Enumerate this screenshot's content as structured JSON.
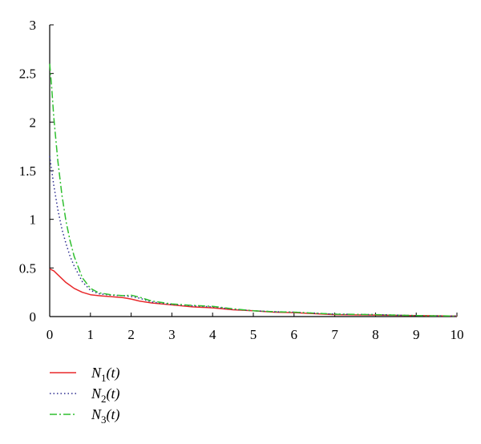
{
  "chart_data": {
    "type": "line",
    "title": "",
    "xlabel": "",
    "ylabel": "",
    "xlim": [
      0,
      10
    ],
    "ylim": [
      0,
      3
    ],
    "xticks": [
      "0",
      "1",
      "2",
      "3",
      "4",
      "5",
      "6",
      "7",
      "8",
      "9",
      "10"
    ],
    "yticks": [
      "0",
      "0.5",
      "1",
      "1.5",
      "2",
      "2.5",
      "3"
    ],
    "grid": false,
    "legend_position": "bottom-left",
    "series": [
      {
        "name": "N1(t)",
        "legend_base": "N",
        "legend_sub": "1",
        "legend_suffix": "(t)",
        "color": "#e8292b",
        "style": "solid",
        "x": [
          0,
          0.1,
          0.2,
          0.3,
          0.4,
          0.5,
          0.6,
          0.8,
          1.0,
          1.2,
          1.5,
          1.8,
          2.0,
          2.2,
          2.5,
          3.0,
          3.5,
          4.0,
          4.5,
          5.0,
          5.5,
          6.0,
          6.5,
          7.0,
          8.0,
          9.0,
          10.0
        ],
        "y": [
          0.49,
          0.47,
          0.43,
          0.39,
          0.35,
          0.32,
          0.29,
          0.25,
          0.225,
          0.215,
          0.205,
          0.195,
          0.18,
          0.16,
          0.14,
          0.12,
          0.1,
          0.09,
          0.07,
          0.06,
          0.045,
          0.04,
          0.03,
          0.02,
          0.015,
          0.01,
          0.005
        ]
      },
      {
        "name": "N2(t)",
        "legend_base": "N",
        "legend_sub": "2",
        "legend_suffix": "(t)",
        "color": "#2b2b8f",
        "style": "dotted",
        "x": [
          0,
          0.05,
          0.1,
          0.2,
          0.3,
          0.4,
          0.5,
          0.6,
          0.8,
          1.0,
          1.2,
          1.5,
          1.8,
          2.0,
          2.2,
          2.5,
          3.0,
          3.5,
          4.0,
          4.5,
          5.0,
          5.5,
          6.0,
          7.0,
          8.0,
          9.0,
          10.0
        ],
        "y": [
          1.65,
          1.5,
          1.35,
          1.1,
          0.9,
          0.75,
          0.62,
          0.52,
          0.36,
          0.27,
          0.235,
          0.22,
          0.215,
          0.205,
          0.19,
          0.15,
          0.125,
          0.11,
          0.1,
          0.075,
          0.06,
          0.05,
          0.045,
          0.025,
          0.02,
          0.01,
          0.005
        ]
      },
      {
        "name": "N3(t)",
        "legend_base": "N",
        "legend_sub": "3",
        "legend_suffix": "(t)",
        "color": "#2fbf2f",
        "style": "dash-dot",
        "x": [
          0,
          0.05,
          0.1,
          0.2,
          0.3,
          0.4,
          0.5,
          0.6,
          0.8,
          1.0,
          1.2,
          1.5,
          1.8,
          2.0,
          2.2,
          2.5,
          3.0,
          3.5,
          4.0,
          4.5,
          5.0,
          5.5,
          6.0,
          7.0,
          8.0,
          9.0,
          10.0
        ],
        "y": [
          2.6,
          2.35,
          2.05,
          1.6,
          1.25,
          0.98,
          0.78,
          0.62,
          0.4,
          0.29,
          0.245,
          0.225,
          0.215,
          0.22,
          0.2,
          0.16,
          0.13,
          0.115,
          0.105,
          0.08,
          0.06,
          0.05,
          0.045,
          0.025,
          0.02,
          0.01,
          0.005
        ]
      }
    ]
  }
}
